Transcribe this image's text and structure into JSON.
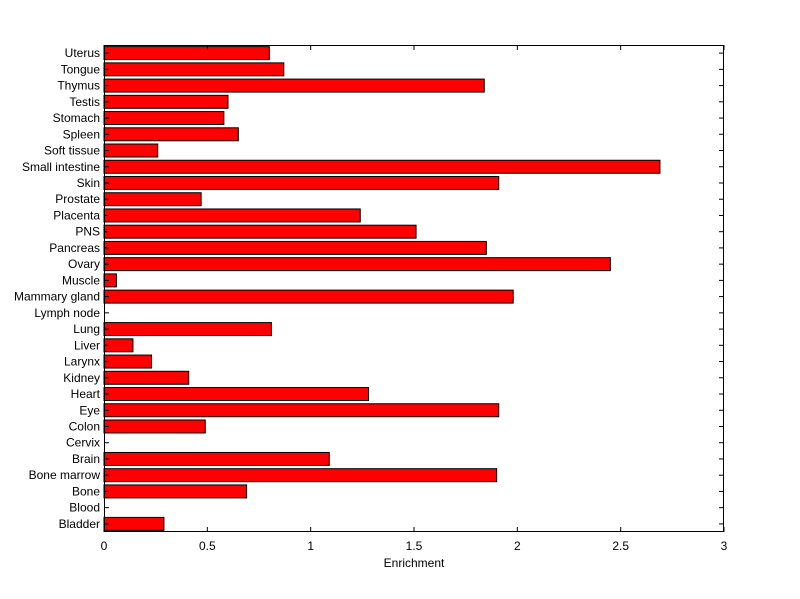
{
  "chart_data": {
    "type": "bar",
    "orientation": "horizontal",
    "title": "",
    "xlabel": "Enrichment",
    "ylabel": "",
    "xlim": [
      0,
      3
    ],
    "x_ticks": [
      0,
      0.5,
      1,
      1.5,
      2,
      2.5,
      3
    ],
    "x_tick_labels": [
      "0",
      "0.5",
      "1",
      "1.5",
      "2",
      "2.5",
      "3"
    ],
    "categories": [
      "Bladder",
      "Blood",
      "Bone",
      "Bone marrow",
      "Brain",
      "Cervix",
      "Colon",
      "Eye",
      "Heart",
      "Kidney",
      "Larynx",
      "Liver",
      "Lung",
      "Lymph node",
      "Mammary gland",
      "Muscle",
      "Ovary",
      "Pancreas",
      "PNS",
      "Placenta",
      "Prostate",
      "Skin",
      "Small intestine",
      "Soft tissue",
      "Spleen",
      "Stomach",
      "Testis",
      "Thymus",
      "Tongue",
      "Uterus"
    ],
    "values": [
      0.29,
      0,
      0.69,
      1.9,
      1.09,
      0,
      0.49,
      1.91,
      1.28,
      0.41,
      0.23,
      0.14,
      0.81,
      0,
      1.98,
      0.06,
      2.45,
      1.85,
      1.51,
      1.24,
      0.47,
      1.91,
      2.69,
      0.26,
      0.65,
      0.58,
      0.6,
      1.84,
      0.87,
      0.8
    ],
    "bar_color": "#ff0000",
    "grid": false,
    "legend": "none"
  }
}
